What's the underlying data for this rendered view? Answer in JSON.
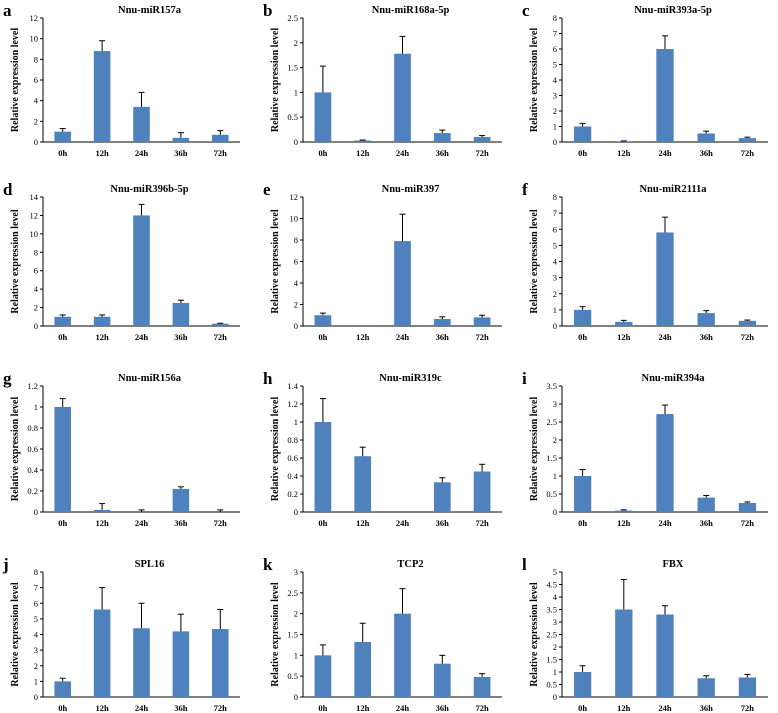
{
  "colors": {
    "bar": "#4F81BD",
    "axis": "#000000",
    "errorbar": "#000000"
  },
  "chart_data": [
    {
      "panel": "a",
      "type": "bar",
      "title": "Nnu-miR157a",
      "ylabel": "Relative expression level",
      "categories": [
        "0h",
        "12h",
        "24h",
        "36h",
        "72h"
      ],
      "values": [
        1.0,
        8.8,
        3.4,
        0.4,
        0.7
      ],
      "errors": [
        0.3,
        1.0,
        1.4,
        0.5,
        0.4
      ],
      "ylim": [
        0,
        12
      ],
      "yticks": [
        0,
        2,
        4,
        6,
        8,
        10,
        12
      ]
    },
    {
      "panel": "b",
      "type": "bar",
      "title": "Nnu-miR168a-5p",
      "ylabel": "Relative expression level",
      "categories": [
        "0h",
        "12h",
        "24h",
        "36h",
        "72h"
      ],
      "values": [
        1.0,
        0.03,
        1.78,
        0.18,
        0.1
      ],
      "errors": [
        0.53,
        0.01,
        0.35,
        0.06,
        0.03
      ],
      "ylim": [
        0,
        2.5
      ],
      "yticks": [
        0,
        0.5,
        1,
        1.5,
        2,
        2.5
      ]
    },
    {
      "panel": "c",
      "type": "bar",
      "title": "Nnu-miR393a-5p",
      "ylabel": "Relative expression level",
      "categories": [
        "0h",
        "12h",
        "24h",
        "36h",
        "72h"
      ],
      "values": [
        1.0,
        0.05,
        6.0,
        0.55,
        0.25
      ],
      "errors": [
        0.2,
        0.02,
        0.85,
        0.15,
        0.06
      ],
      "ylim": [
        0,
        8
      ],
      "yticks": [
        0,
        1,
        2,
        3,
        4,
        5,
        6,
        7,
        8
      ]
    },
    {
      "panel": "d",
      "type": "bar",
      "title": "Nnu-miR396b-5p",
      "ylabel": "Relative expression level",
      "categories": [
        "0h",
        "12h",
        "24h",
        "36h",
        "72h"
      ],
      "values": [
        1.0,
        1.0,
        12.0,
        2.5,
        0.25
      ],
      "errors": [
        0.2,
        0.2,
        1.2,
        0.3,
        0.05
      ],
      "ylim": [
        0,
        14
      ],
      "yticks": [
        0,
        2,
        4,
        6,
        8,
        10,
        12,
        14
      ]
    },
    {
      "panel": "e",
      "type": "bar",
      "title": "Nnu-miR397",
      "ylabel": "Relative expression level",
      "categories": [
        "0h",
        "12h",
        "24h",
        "36h",
        "72h"
      ],
      "values": [
        1.0,
        0.0,
        7.9,
        0.65,
        0.8
      ],
      "errors": [
        0.2,
        0.0,
        2.5,
        0.2,
        0.2
      ],
      "ylim": [
        0,
        12
      ],
      "yticks": [
        0,
        2,
        4,
        6,
        8,
        10,
        12
      ]
    },
    {
      "panel": "f",
      "type": "bar",
      "title": "Nnu-miR2111a",
      "ylabel": "Relative expression level",
      "categories": [
        "0h",
        "12h",
        "24h",
        "36h",
        "72h"
      ],
      "values": [
        1.0,
        0.25,
        5.8,
        0.8,
        0.32
      ],
      "errors": [
        0.2,
        0.1,
        0.95,
        0.15,
        0.05
      ],
      "ylim": [
        0,
        8
      ],
      "yticks": [
        0,
        1,
        2,
        3,
        4,
        5,
        6,
        7,
        8
      ]
    },
    {
      "panel": "g",
      "type": "bar",
      "title": "Nnu-miR156a",
      "ylabel": "Relative expression level",
      "categories": [
        "0h",
        "12h",
        "24h",
        "36h",
        "72h"
      ],
      "values": [
        1.0,
        0.02,
        0.0,
        0.22,
        0.0
      ],
      "errors": [
        0.08,
        0.06,
        0.02,
        0.02,
        0.02
      ],
      "ylim": [
        0,
        1.2
      ],
      "yticks": [
        0,
        0.2,
        0.4,
        0.6,
        0.8,
        1,
        1.2
      ]
    },
    {
      "panel": "h",
      "type": "bar",
      "title": "Nnu-miR319c",
      "ylabel": "Relative expression level",
      "categories": [
        "0h",
        "12h",
        "24h",
        "36h",
        "72h"
      ],
      "values": [
        1.0,
        0.62,
        0.0,
        0.33,
        0.45
      ],
      "errors": [
        0.26,
        0.1,
        0.0,
        0.05,
        0.08
      ],
      "ylim": [
        0,
        1.4
      ],
      "yticks": [
        0,
        0.2,
        0.4,
        0.6,
        0.8,
        1,
        1.2,
        1.4
      ]
    },
    {
      "panel": "i",
      "type": "bar",
      "title": "Nnu-miR394a",
      "ylabel": "Relative expression level",
      "categories": [
        "0h",
        "12h",
        "24h",
        "36h",
        "72h"
      ],
      "values": [
        1.0,
        0.04,
        2.72,
        0.4,
        0.25
      ],
      "errors": [
        0.18,
        0.02,
        0.25,
        0.06,
        0.03
      ],
      "ylim": [
        0,
        3.5
      ],
      "yticks": [
        0,
        0.5,
        1,
        1.5,
        2,
        2.5,
        3,
        3.5
      ]
    },
    {
      "panel": "j",
      "type": "bar",
      "title": "SPL16",
      "ylabel": "Relative expression level",
      "categories": [
        "0h",
        "12h",
        "24h",
        "36h",
        "72h"
      ],
      "values": [
        1.0,
        5.6,
        4.4,
        4.2,
        4.35
      ],
      "errors": [
        0.2,
        1.4,
        1.6,
        1.1,
        1.25
      ],
      "ylim": [
        0,
        8
      ],
      "yticks": [
        0,
        1,
        2,
        3,
        4,
        5,
        6,
        7,
        8
      ]
    },
    {
      "panel": "k",
      "type": "bar",
      "title": "TCP2",
      "ylabel": "Relative expression level",
      "categories": [
        "0h",
        "12h",
        "24h",
        "36h",
        "72h"
      ],
      "values": [
        1.0,
        1.32,
        2.0,
        0.8,
        0.48
      ],
      "errors": [
        0.25,
        0.45,
        0.6,
        0.2,
        0.08
      ],
      "ylim": [
        0,
        3
      ],
      "yticks": [
        0,
        0.5,
        1,
        1.5,
        2,
        2.5,
        3
      ]
    },
    {
      "panel": "l",
      "type": "bar",
      "title": "FBX",
      "ylabel": "Relative expression level",
      "categories": [
        "0h",
        "12h",
        "24h",
        "36h",
        "72h"
      ],
      "values": [
        1.0,
        3.5,
        3.3,
        0.75,
        0.78
      ],
      "errors": [
        0.25,
        1.2,
        0.35,
        0.1,
        0.12
      ],
      "ylim": [
        0,
        5
      ],
      "yticks": [
        0,
        0.5,
        1,
        1.5,
        2,
        2.5,
        3,
        3.5,
        4,
        4.5,
        5
      ]
    }
  ]
}
